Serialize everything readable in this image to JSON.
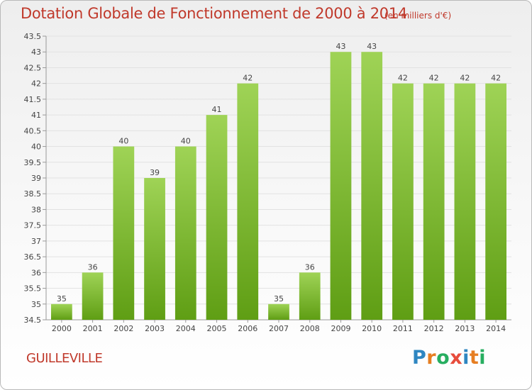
{
  "title": "Dotation Globale de Fonctionnement de 2000 à 2014",
  "unit": "(en milliers d'€)",
  "commune": "GUILLEVILLE",
  "logo": {
    "text": "Proxiti",
    "colors": [
      "#2e86c1",
      "#e67e22",
      "#27ae60",
      "#e74c3c",
      "#2e86c1",
      "#e67e22",
      "#27ae60"
    ]
  },
  "colors": {
    "bar_top": "#9fd356",
    "bar_bottom": "#5f9e14",
    "grid": "#e2e2e2",
    "title": "#c0392b"
  },
  "chart_data": {
    "type": "bar",
    "categories": [
      "2000",
      "2001",
      "2002",
      "2003",
      "2004",
      "2005",
      "2006",
      "2007",
      "2008",
      "2009",
      "2010",
      "2011",
      "2012",
      "2013",
      "2014"
    ],
    "values": [
      35,
      36,
      40,
      39,
      40,
      41,
      42,
      35,
      36,
      43,
      43,
      42,
      42,
      42,
      42
    ],
    "data_labels": [
      "35",
      "36",
      "40",
      "39",
      "40",
      "41",
      "42",
      "35",
      "36",
      "43",
      "43",
      "42",
      "42",
      "42",
      "42"
    ],
    "ylim": [
      34.5,
      43.5
    ],
    "yticks": [
      "34.5",
      "35",
      "35.5",
      "36",
      "36.5",
      "37",
      "37.5",
      "38",
      "38.5",
      "39",
      "39.5",
      "40",
      "40.5",
      "41",
      "41.5",
      "42",
      "42.5",
      "43",
      "43.5"
    ],
    "grid": true,
    "xlabel": "",
    "ylabel": ""
  }
}
